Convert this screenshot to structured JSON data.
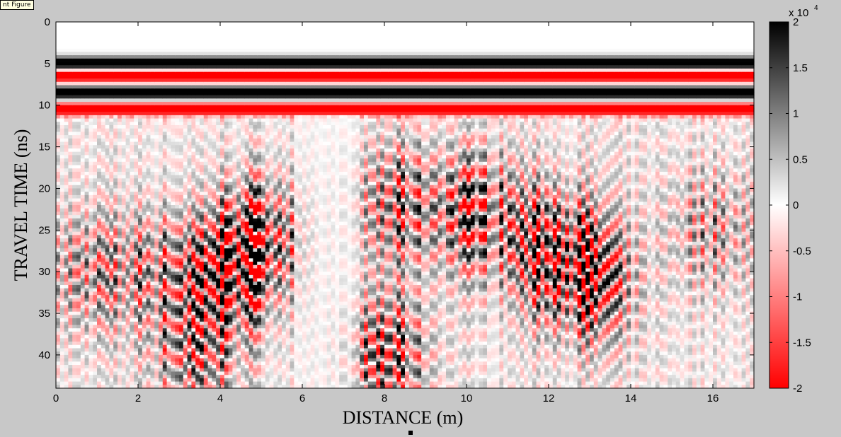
{
  "tooltip": {
    "text": "nt Figure"
  },
  "chart_data": {
    "type": "heatmap",
    "title": "",
    "xlabel": "DISTANCE (m)",
    "ylabel": "TRAVEL TIME (ns)",
    "xlim": [
      0,
      17
    ],
    "ylim": [
      0,
      44
    ],
    "y_reversed": true,
    "x_ticks": [
      "0",
      "2",
      "4",
      "6",
      "8",
      "10",
      "12",
      "14",
      "16"
    ],
    "y_ticks": [
      "0",
      "5",
      "10",
      "15",
      "20",
      "25",
      "30",
      "35",
      "40"
    ],
    "colorbar": {
      "multiplier_label": "x 10",
      "multiplier_exponent": "4",
      "range": [
        -2,
        2
      ],
      "ticks": [
        "2",
        "1.5",
        "1",
        "0.5",
        "0",
        "-0.5",
        "-1",
        "-1.5",
        "-2"
      ],
      "colors": {
        "high": "#000000",
        "mid": "#ffffff",
        "low": "#ff0000"
      }
    },
    "description": "",
    "bands": [
      {
        "t": 5.0,
        "polarity": 1
      },
      {
        "t": 6.5,
        "polarity": -1
      },
      {
        "t": 8.5,
        "polarity": 1
      },
      {
        "t": 10.5,
        "polarity": -1
      }
    ],
    "hot_zones": [
      {
        "x": 4.2,
        "t": 30,
        "strength": 1.0
      },
      {
        "x": 5.0,
        "t": 26,
        "strength": 0.9
      },
      {
        "x": 8.0,
        "t": 40,
        "strength": 0.9
      },
      {
        "x": 8.3,
        "t": 22,
        "strength": 0.7
      },
      {
        "x": 10.2,
        "t": 23,
        "strength": 0.9
      },
      {
        "x": 12.0,
        "t": 27,
        "strength": 0.9
      },
      {
        "x": 12.9,
        "t": 31,
        "strength": 1.0
      },
      {
        "x": 2.5,
        "t": 30,
        "strength": 0.6
      },
      {
        "x": 3.4,
        "t": 40,
        "strength": 0.7
      },
      {
        "x": 0.8,
        "t": 30,
        "strength": 0.5
      },
      {
        "x": 16.0,
        "t": 25,
        "strength": 0.5
      }
    ]
  }
}
